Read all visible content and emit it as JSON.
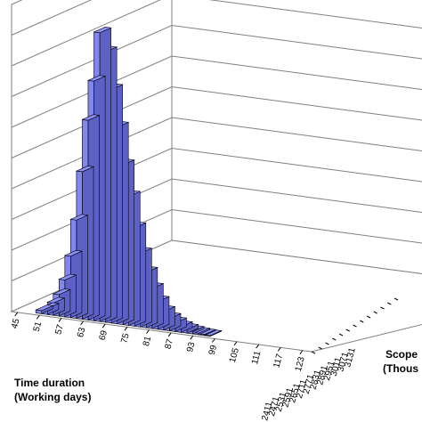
{
  "chart_data": {
    "type": "bar",
    "title": "",
    "xlabel": [
      "Time duration",
      "(Working days)"
    ],
    "ylabel": [
      "Scope",
      "(Thous"
    ],
    "grid": true,
    "colors": {
      "bar_top": "#8c90f8",
      "bar_front": "#8287ee",
      "bar_side": "#5d61c6",
      "grid": "#808080",
      "floor": "#ffffff"
    },
    "x_tick_labels": [
      "45",
      "51",
      "57",
      "63",
      "69",
      "75",
      "81",
      "87",
      "93",
      "99",
      "105",
      "111",
      "117",
      "123"
    ],
    "y_tick_labels": [
      "2411",
      "2471",
      "2531",
      "2591",
      "2651",
      "2711",
      "2771",
      "2831",
      "2891",
      "2951",
      "3011",
      "3071",
      "3131"
    ],
    "x_start": 45,
    "x_step": 1.5,
    "values": [
      0.1,
      0.2,
      0.4,
      0.7,
      1.2,
      2.0,
      3.2,
      4.8,
      6.5,
      7.8,
      9.4,
      8.8,
      7.6,
      6.4,
      5.2,
      4.2,
      3.2,
      2.4,
      1.8,
      1.3,
      0.9,
      0.6,
      0.4,
      0.28,
      0.18,
      0.12,
      0.08,
      0.05,
      0.03,
      0.02
    ],
    "zlim": [
      0,
      10
    ]
  }
}
